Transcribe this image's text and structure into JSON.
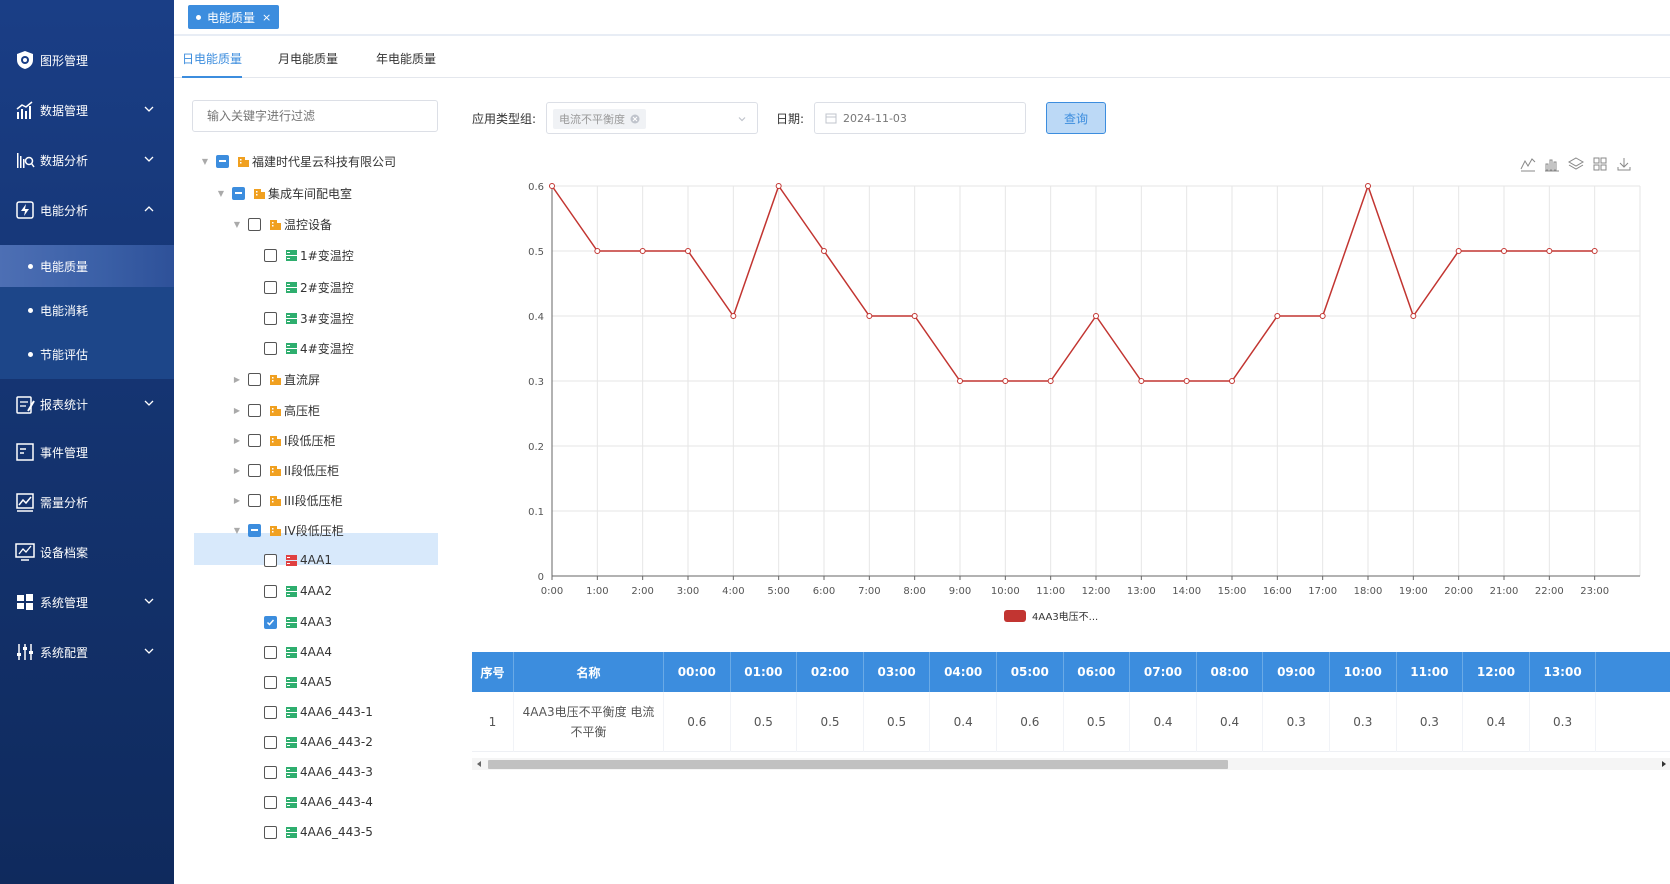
{
  "sidebar": {
    "items": [
      {
        "label": "图形管理",
        "icon": "shield-icon"
      },
      {
        "label": "数据管理",
        "icon": "bar-chart-icon"
      },
      {
        "label": "数据分析",
        "icon": "analysis-icon"
      },
      {
        "label": "电能分析",
        "icon": "energy-icon"
      },
      {
        "label": "报表统计",
        "icon": "report-icon"
      },
      {
        "label": "事件管理",
        "icon": "event-icon"
      },
      {
        "label": "需量分析",
        "icon": "demand-icon"
      },
      {
        "label": "设备档案",
        "icon": "device-icon"
      },
      {
        "label": "系统管理",
        "icon": "windows-icon"
      },
      {
        "label": "系统配置",
        "icon": "sliders-icon"
      }
    ],
    "sub_items": [
      "电能质量",
      "电能消耗",
      "节能评估"
    ]
  },
  "topbar": {
    "tag_label": "电能质量",
    "tag_close": "×"
  },
  "tabs": [
    "日电能质量",
    "月电能质量",
    "年电能质量"
  ],
  "filter": {
    "placeholder": "输入关键字进行过滤"
  },
  "tree": [
    {
      "label": "福建时代星云科技有限公司",
      "state": "ind"
    },
    {
      "label": "集成车间配电室",
      "state": "ind"
    },
    {
      "label": "温控设备",
      "state": "none"
    },
    {
      "label": "1#变温控",
      "state": "none"
    },
    {
      "label": "2#变温控",
      "state": "none"
    },
    {
      "label": "3#变温控",
      "state": "none"
    },
    {
      "label": "4#变温控",
      "state": "none"
    },
    {
      "label": "直流屏",
      "state": "none"
    },
    {
      "label": "高压柜",
      "state": "none"
    },
    {
      "label": "I段低压柜",
      "state": "none"
    },
    {
      "label": "II段低压柜",
      "state": "none"
    },
    {
      "label": "III段低压柜",
      "state": "none"
    },
    {
      "label": "IV段低压柜",
      "state": "ind"
    },
    {
      "label": "4AA1",
      "state": "none"
    },
    {
      "label": "4AA2",
      "state": "none"
    },
    {
      "label": "4AA3",
      "state": "chk"
    },
    {
      "label": "4AA4",
      "state": "none"
    },
    {
      "label": "4AA5",
      "state": "none"
    },
    {
      "label": "4AA6_443-1",
      "state": "none"
    },
    {
      "label": "4AA6_443-2",
      "state": "none"
    },
    {
      "label": "4AA6_443-3",
      "state": "none"
    },
    {
      "label": "4AA6_443-4",
      "state": "none"
    },
    {
      "label": "4AA6_443-5",
      "state": "none"
    }
  ],
  "query": {
    "type_label": "应用类型组:",
    "type_value": "电流不平衡度",
    "date_label": "日期:",
    "date_value": "2024-11-03",
    "button": "查询"
  },
  "colors": {
    "accent": "#3c8dde",
    "series": "#c23531",
    "sidebar": "#14336f"
  },
  "chart_data": {
    "type": "line",
    "x": [
      "0:00",
      "1:00",
      "2:00",
      "3:00",
      "4:00",
      "5:00",
      "6:00",
      "7:00",
      "8:00",
      "9:00",
      "10:00",
      "11:00",
      "12:00",
      "13:00",
      "14:00",
      "15:00",
      "16:00",
      "17:00",
      "18:00",
      "19:00",
      "20:00",
      "21:00",
      "22:00",
      "23:00"
    ],
    "series": [
      {
        "name": "4AA3电压不...",
        "values": [
          0.6,
          0.5,
          0.5,
          0.5,
          0.4,
          0.6,
          0.5,
          0.4,
          0.4,
          0.3,
          0.3,
          0.3,
          0.4,
          0.3,
          0.3,
          0.3,
          0.4,
          0.4,
          0.6,
          0.4,
          0.5,
          0.5,
          0.5,
          0.5
        ]
      }
    ],
    "ylim": [
      0,
      0.6
    ],
    "yticks": [
      "0",
      "0.1",
      "0.2",
      "0.3",
      "0.4",
      "0.5",
      "0.6"
    ],
    "grid": true,
    "legend": "bottom-center"
  },
  "table": {
    "headers": [
      "序号",
      "名称",
      "00:00",
      "01:00",
      "02:00",
      "03:00",
      "04:00",
      "05:00",
      "06:00",
      "07:00",
      "08:00",
      "09:00",
      "10:00",
      "11:00",
      "12:00",
      "13:00"
    ],
    "rows": [
      [
        "1",
        "4AA3电压不平衡度 电流不平衡",
        "0.6",
        "0.5",
        "0.5",
        "0.5",
        "0.4",
        "0.6",
        "0.5",
        "0.4",
        "0.4",
        "0.3",
        "0.3",
        "0.3",
        "0.4",
        "0.3"
      ]
    ]
  }
}
